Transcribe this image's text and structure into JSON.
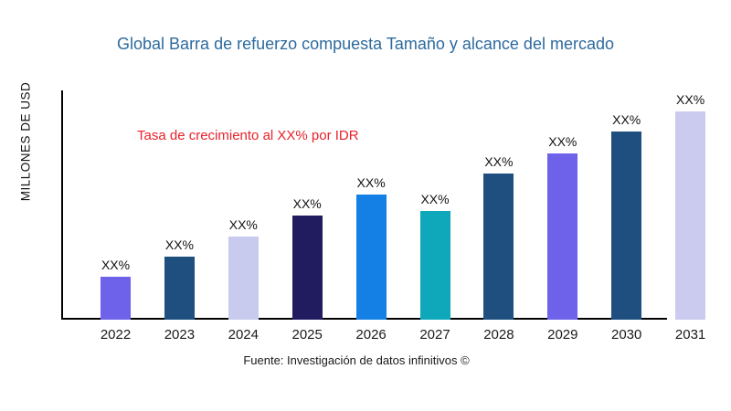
{
  "header": {
    "title": "Global Barra de refuerzo compuesta Tamaño y alcance del mercado"
  },
  "colors": {
    "title": "#2d6a9e",
    "annotation": "#e8222a",
    "axis": "#000000",
    "text": "#1a1a1a"
  },
  "chart_data": {
    "type": "bar",
    "title": "Global Barra de refuerzo compuesta Tamaño y alcance del mercado",
    "ylabel": "MILLONES DE USD",
    "xlabel": "",
    "annotation": "Tasa de crecimiento al XX% por IDR",
    "source": "Fuente: Investigación de datos infinitivos ©",
    "categories": [
      "2022",
      "2023",
      "2024",
      "2025",
      "2026",
      "2027",
      "2028",
      "2029",
      "2030",
      "2031"
    ],
    "bar_labels": [
      "XX%",
      "XX%",
      "XX%",
      "XX%",
      "XX%",
      "XX%",
      "XX%",
      "XX%",
      "XX%",
      "XX%"
    ],
    "values_relative": [
      47,
      69,
      91,
      114,
      137,
      119,
      160,
      182,
      206,
      228
    ],
    "bar_colors": [
      "#6e61ea",
      "#1e4f7e",
      "#c9cbee",
      "#211b60",
      "#1480e5",
      "#0ea8ba",
      "#1e4f7e",
      "#6e61ea",
      "#1e4f7e",
      "#cacbef"
    ],
    "legend": null,
    "grid": false,
    "y_axis_ticks": [],
    "notes": "Bar values are masked as XX% in the source image; values_relative are bar heights in pixels read from the chart."
  }
}
